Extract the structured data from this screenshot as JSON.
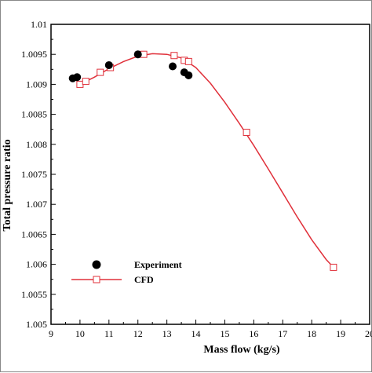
{
  "chart_data": {
    "type": "scatter",
    "title": "",
    "xlabel": "Mass flow (kg/s)",
    "ylabel": "Total pressure ratio",
    "xlim": [
      9,
      20
    ],
    "ylim": [
      1.005,
      1.01
    ],
    "x_ticks": [
      "9",
      "10",
      "11",
      "12",
      "13",
      "14",
      "15",
      "16",
      "17",
      "18",
      "19",
      "20"
    ],
    "y_ticks": [
      "1.005",
      "1.0055",
      "1.006",
      "1.0065",
      "1.007",
      "1.0075",
      "1.008",
      "1.0085",
      "1.009",
      "1.0095",
      "1.01"
    ],
    "legend_position": "bottom-left",
    "series": [
      {
        "name": "Experiment",
        "marker": "filled-circle",
        "color": "#000000",
        "points": [
          {
            "x": 9.75,
            "y": 1.0091
          },
          {
            "x": 9.9,
            "y": 1.00912
          },
          {
            "x": 11.0,
            "y": 1.00932
          },
          {
            "x": 12.0,
            "y": 1.0095
          },
          {
            "x": 13.2,
            "y": 1.0093
          },
          {
            "x": 13.6,
            "y": 1.0092
          },
          {
            "x": 13.75,
            "y": 1.00915
          }
        ]
      },
      {
        "name": "CFD",
        "marker": "open-square",
        "line": true,
        "color": "#e0303a",
        "points": [
          {
            "x": 10.0,
            "y": 1.009
          },
          {
            "x": 10.2,
            "y": 1.00905
          },
          {
            "x": 10.7,
            "y": 1.0092
          },
          {
            "x": 11.05,
            "y": 1.00928
          },
          {
            "x": 12.2,
            "y": 1.0095
          },
          {
            "x": 13.25,
            "y": 1.00948
          },
          {
            "x": 13.6,
            "y": 1.0094
          },
          {
            "x": 13.75,
            "y": 1.00938
          },
          {
            "x": 15.75,
            "y": 1.0082
          },
          {
            "x": 18.75,
            "y": 1.00595
          }
        ],
        "curve": [
          {
            "x": 10.0,
            "y": 1.009
          },
          {
            "x": 10.5,
            "y": 1.00912
          },
          {
            "x": 11.0,
            "y": 1.00926
          },
          {
            "x": 11.5,
            "y": 1.00938
          },
          {
            "x": 12.0,
            "y": 1.00947
          },
          {
            "x": 12.5,
            "y": 1.00951
          },
          {
            "x": 13.0,
            "y": 1.0095
          },
          {
            "x": 13.5,
            "y": 1.00944
          },
          {
            "x": 14.0,
            "y": 1.00928
          },
          {
            "x": 14.5,
            "y": 1.00902
          },
          {
            "x": 15.0,
            "y": 1.0087
          },
          {
            "x": 15.5,
            "y": 1.00835
          },
          {
            "x": 16.0,
            "y": 1.00798
          },
          {
            "x": 16.5,
            "y": 1.00759
          },
          {
            "x": 17.0,
            "y": 1.00719
          },
          {
            "x": 17.5,
            "y": 1.00679
          },
          {
            "x": 18.0,
            "y": 1.00641
          },
          {
            "x": 18.5,
            "y": 1.00608
          },
          {
            "x": 18.75,
            "y": 1.00595
          }
        ]
      }
    ]
  }
}
